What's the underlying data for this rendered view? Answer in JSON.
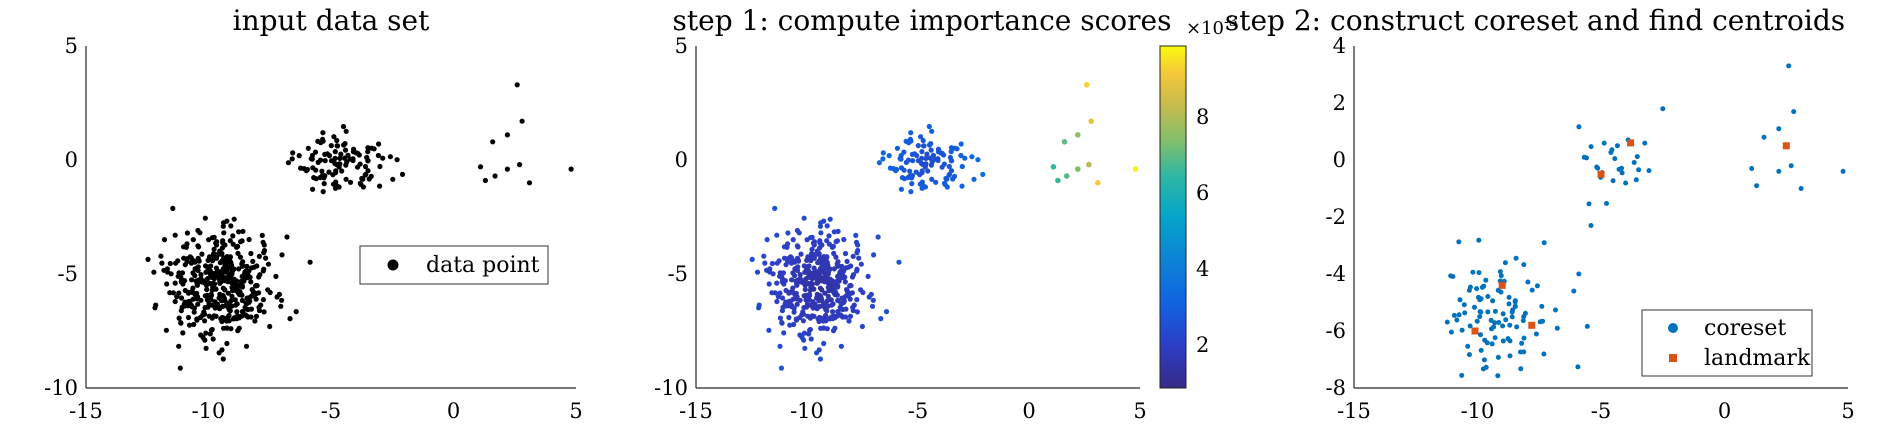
{
  "colors": {
    "black": "#000000",
    "coreset": "#0072BD",
    "landmark": "#D95319"
  },
  "panels": [
    {
      "title": "input data set",
      "xlim": [
        -15,
        5
      ],
      "ylim": [
        -10,
        5
      ],
      "xticks": [
        "-15",
        "-10",
        "-5",
        "0",
        "5"
      ],
      "yticks": [
        "5",
        "0",
        "-5",
        "-10"
      ],
      "legend": [
        "data point"
      ]
    },
    {
      "title": "step 1: compute importance scores",
      "xlim": [
        -15,
        5
      ],
      "ylim": [
        -10,
        5
      ],
      "xticks": [
        "-15",
        "-10",
        "-5",
        "0",
        "5"
      ],
      "yticks": [
        "5",
        "0",
        "-5",
        "-10"
      ],
      "colorbar": {
        "ticks": [
          "8",
          "6",
          "4",
          "2"
        ],
        "range": [
          0.8,
          9.8
        ],
        "exponent_base": "×10",
        "exponent": "-3"
      }
    },
    {
      "title": "step 2: construct coreset and find centroids",
      "xlim": [
        -15,
        5
      ],
      "ylim": [
        -8,
        4
      ],
      "xticks": [
        "-15",
        "-10",
        "-5",
        "0",
        "5"
      ],
      "yticks": [
        "4",
        "2",
        "0",
        "-2",
        "-4",
        "-6",
        "-8"
      ],
      "legend": [
        "coreset",
        "landmark"
      ]
    }
  ],
  "chart_data": [
    {
      "type": "scatter",
      "title": "input data set",
      "xlim": [
        -15,
        5
      ],
      "ylim": [
        -10,
        5
      ],
      "series": [
        {
          "name": "data point",
          "clusters": [
            {
              "center": [
                -9.5,
                -5.5
              ],
              "spread": [
                1.1,
                1.1
              ],
              "count": 450
            },
            {
              "center": [
                -4.6,
                -0.1
              ],
              "spread": [
                0.95,
                0.8
              ],
              "count": 110
            }
          ],
          "points": [
            [
              1.1,
              -0.3
            ],
            [
              1.7,
              -0.7
            ],
            [
              2.2,
              -0.4
            ],
            [
              1.3,
              -0.9
            ],
            [
              2.7,
              -0.2
            ],
            [
              2.8,
              1.7
            ],
            [
              2.2,
              1.1
            ],
            [
              3.1,
              -1.0
            ],
            [
              4.8,
              -0.4
            ],
            [
              2.6,
              3.3
            ],
            [
              1.6,
              0.8
            ]
          ]
        }
      ]
    },
    {
      "type": "scatter",
      "title": "step 1: compute importance scores",
      "xlim": [
        -15,
        5
      ],
      "ylim": [
        -10,
        5
      ],
      "color_range": [
        0.8,
        9.8
      ],
      "color_scale": "×10^-3",
      "series": [
        {
          "clusters": [
            {
              "center": [
                -9.5,
                -5.5
              ],
              "spread": [
                1.1,
                1.1
              ],
              "count": 450,
              "score": 1.2
            },
            {
              "center": [
                -4.6,
                -0.1
              ],
              "spread": [
                0.95,
                0.8
              ],
              "count": 110,
              "score": 2.1
            }
          ],
          "points": [
            [
              1.1,
              -0.3,
              5.8
            ],
            [
              1.7,
              -0.7,
              6.3
            ],
            [
              2.2,
              -0.4,
              6.8
            ],
            [
              1.3,
              -0.9,
              6.0
            ],
            [
              2.7,
              -0.2,
              7.6
            ],
            [
              2.8,
              1.7,
              8.6
            ],
            [
              2.2,
              1.1,
              7.0
            ],
            [
              3.1,
              -1.0,
              8.8
            ],
            [
              4.8,
              -0.4,
              9.6
            ],
            [
              2.6,
              3.3,
              9.0
            ],
            [
              1.6,
              0.8,
              6.4
            ]
          ]
        }
      ]
    },
    {
      "type": "scatter",
      "title": "step 2: construct coreset and find centroids",
      "xlim": [
        -15,
        5
      ],
      "ylim": [
        -8,
        4
      ],
      "series": [
        {
          "name": "coreset",
          "clusters": [
            {
              "center": [
                -9.4,
                -5.5
              ],
              "spread": [
                1.1,
                0.9
              ],
              "count": 100
            },
            {
              "center": [
                -4.5,
                -0.1
              ],
              "spread": [
                1.0,
                0.8
              ],
              "count": 28
            }
          ],
          "points": [
            [
              1.1,
              -0.3
            ],
            [
              1.3,
              -0.9
            ],
            [
              2.2,
              -0.4
            ],
            [
              2.7,
              -0.2
            ],
            [
              2.8,
              1.7
            ],
            [
              2.2,
              1.1
            ],
            [
              3.1,
              -1.0
            ],
            [
              4.8,
              -0.4
            ],
            [
              2.6,
              3.3
            ],
            [
              1.6,
              0.8
            ],
            [
              -2.5,
              1.8
            ],
            [
              -5.9,
              -4.0
            ],
            [
              -6.1,
              -4.6
            ],
            [
              -7.3,
              -2.9
            ]
          ]
        },
        {
          "name": "landmark",
          "points": [
            [
              -9.0,
              -4.4
            ],
            [
              -7.8,
              -5.8
            ],
            [
              -10.1,
              -6.0
            ],
            [
              -5.0,
              -0.5
            ],
            [
              -3.8,
              0.6
            ],
            [
              2.5,
              0.5
            ]
          ]
        }
      ]
    }
  ]
}
